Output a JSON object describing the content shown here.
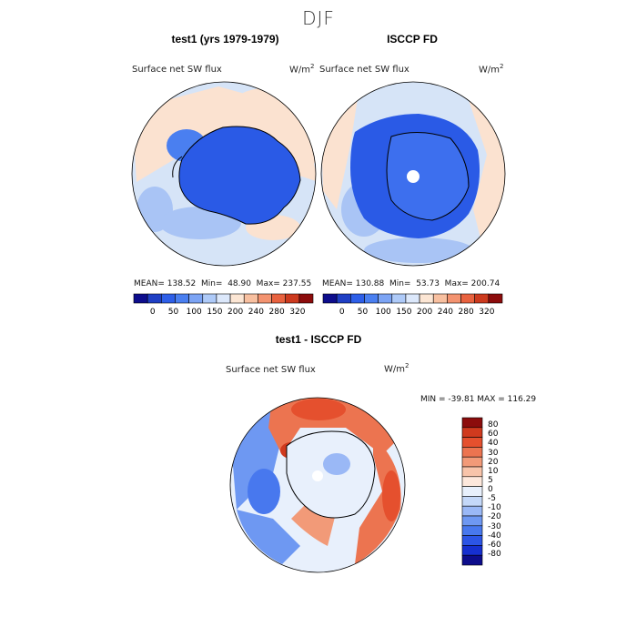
{
  "title": "DJF",
  "colors": {
    "main_bar": [
      "#0d0d8c",
      "#1f3fc4",
      "#2e5fe8",
      "#4a7ff0",
      "#7ca4f4",
      "#aecaf8",
      "#dce8fb",
      "#fce6d4",
      "#f8c0a0",
      "#f39370",
      "#e8623f",
      "#cc3a1e",
      "#8c0c0c"
    ],
    "diff_bar": [
      "#0d0d8c",
      "#1630d0",
      "#2c55e6",
      "#4878ee",
      "#6e98f2",
      "#9ab8f6",
      "#c4d8f9",
      "#e8f0fc",
      "#fde8dc",
      "#f8c4aa",
      "#f29a78",
      "#ec7450",
      "#e5502e",
      "#d03a1e",
      "#8c0c0c"
    ],
    "ice": "#2a5ae6",
    "ocean_light": "#d6e4f7",
    "ocean_warm": "#fbe2d0"
  },
  "panels": [
    {
      "title": "test1 (yrs 1979-1979)",
      "variable": "Surface net SW flux",
      "units_base": "W/m",
      "units_exp": "2",
      "stats": "MEAN= 138.52  Min=  48.90  Max= 237.55",
      "colorbar_ticks": [
        "0",
        "50",
        "100",
        "150",
        "200",
        "240",
        "280",
        "320"
      ]
    },
    {
      "title": "ISCCP FD",
      "variable": "Surface net SW flux",
      "units_base": "W/m",
      "units_exp": "2",
      "stats": "MEAN= 130.88  Min=  53.73  Max= 200.74",
      "colorbar_ticks": [
        "0",
        "50",
        "100",
        "150",
        "200",
        "240",
        "280",
        "320"
      ]
    }
  ],
  "diff": {
    "title": "test1 - ISCCP FD",
    "variable": "Surface net SW flux",
    "units_base": "W/m",
    "units_exp": "2",
    "minmax": "MIN = -39.81 MAX = 116.29",
    "colorbar_ticks": [
      "80",
      "60",
      "40",
      "30",
      "20",
      "10",
      "5",
      "0",
      "-5",
      "-10",
      "-20",
      "-30",
      "-40",
      "-60",
      "-80"
    ]
  }
}
